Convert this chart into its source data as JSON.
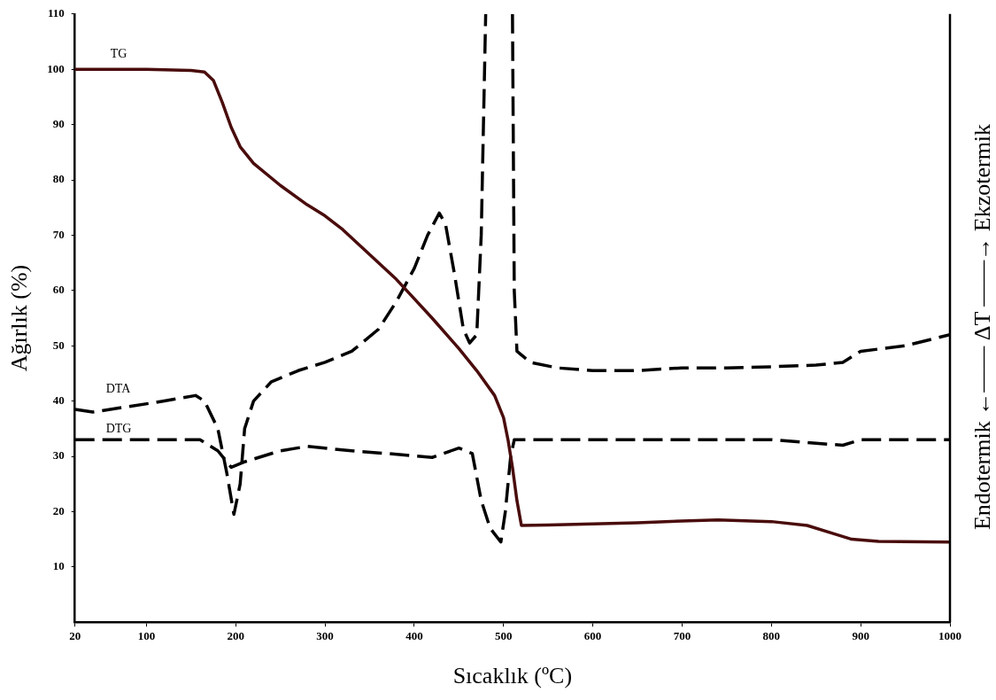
{
  "chart_data": {
    "type": "line",
    "xlabel": "Sıcaklık (ºC)",
    "ylabel": "Ağırlık (%)",
    "y2label": "Endotermik ←—— ΔT ——→ Ekzotermik",
    "xlim": [
      20,
      1000
    ],
    "xticks": [
      20,
      100,
      200,
      300,
      400,
      500,
      600,
      700,
      800,
      900,
      1000
    ],
    "ylim": [
      0,
      110
    ],
    "yticks": [
      10,
      20,
      30,
      40,
      50,
      60,
      70,
      80,
      90,
      100,
      110
    ],
    "grid": false,
    "legend": false,
    "marker": "none",
    "series": [
      {
        "name": "TG",
        "color": "#4a0c0c",
        "line_style": "solid",
        "x": [
          20,
          100,
          150,
          165,
          175,
          185,
          195,
          205,
          220,
          250,
          280,
          300,
          320,
          350,
          380,
          400,
          420,
          450,
          470,
          490,
          500,
          505,
          510,
          515,
          520,
          550,
          600,
          650,
          700,
          740,
          800,
          840,
          870,
          890,
          920,
          1000
        ],
        "values": [
          100,
          100,
          99.8,
          99.5,
          98,
          94,
          89.5,
          86,
          83,
          79,
          75.5,
          73.5,
          71,
          66.5,
          62,
          58.5,
          55,
          49.5,
          45.5,
          41,
          37,
          33,
          28,
          22,
          17.5,
          17.6,
          17.8,
          18,
          18.3,
          18.5,
          18.2,
          17.5,
          16,
          15,
          14.6,
          14.5
        ]
      },
      {
        "name": "DTA",
        "color": "#000000",
        "line_style": "dashed",
        "x": [
          20,
          40,
          80,
          120,
          155,
          165,
          180,
          190,
          198,
          205,
          210,
          220,
          240,
          270,
          300,
          330,
          360,
          380,
          400,
          415,
          428,
          435,
          445,
          455,
          462,
          470,
          475,
          480,
          495,
          510,
          512,
          515,
          530,
          560,
          600,
          650,
          700,
          750,
          800,
          850,
          880,
          900,
          950,
          1000
        ],
        "values": [
          38.5,
          38,
          39,
          40,
          41,
          40,
          35,
          27,
          19.5,
          25,
          35,
          40,
          43.5,
          45.5,
          47,
          49,
          53,
          58,
          64,
          70,
          74,
          72,
          63,
          53,
          50.5,
          52,
          70,
          110,
          null,
          110,
          60,
          49,
          47,
          46,
          45.5,
          45.5,
          46,
          46,
          46.2,
          46.5,
          47,
          49,
          50,
          52
        ]
      },
      {
        "name": "DTG",
        "color": "#000000",
        "line_style": "dashed",
        "x": [
          20,
          100,
          160,
          180,
          195,
          210,
          250,
          280,
          330,
          370,
          420,
          450,
          465,
          475,
          485,
          497,
          502,
          508,
          512,
          600,
          800,
          880,
          900,
          1000
        ],
        "values": [
          33,
          33,
          33,
          31,
          28,
          29,
          31,
          31.8,
          31,
          30.5,
          29.8,
          31.5,
          30.5,
          22,
          17,
          14.5,
          20,
          30,
          33,
          33,
          33,
          32,
          33,
          33
        ]
      }
    ]
  }
}
